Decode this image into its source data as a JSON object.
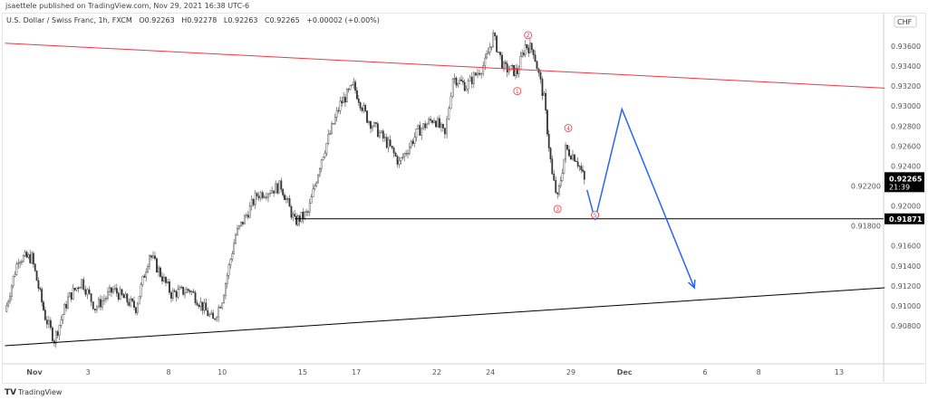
{
  "publisher": "jsaettele published on TradingView.com, Nov 29, 2021 16:38 UTC-6",
  "legend": {
    "symbol": "U.S. Dollar / Swiss Franc, 1h, FXCM",
    "open": "O0.92263",
    "high": "H0.92278",
    "low": "L0.92263",
    "close": "C0.92265",
    "change": "+0.00002 (+0.00%)"
  },
  "footer": {
    "logo": "TradingView"
  },
  "chart_data": {
    "type": "line",
    "title": "",
    "currency": "CHF",
    "ylim": [
      0.9072,
      0.9375
    ],
    "y_ticks": [
      "0.93600",
      "0.93400",
      "0.93200",
      "0.93000",
      "0.92800",
      "0.92600",
      "0.92400",
      "0.92200",
      "0.92000",
      "0.91800",
      "0.91600",
      "0.91400",
      "0.91200",
      "0.91000",
      "0.90800"
    ],
    "x_ticks": [
      {
        "label": "Nov",
        "day": 0,
        "bold": true
      },
      {
        "label": "3",
        "day": 2
      },
      {
        "label": "8",
        "day": 5
      },
      {
        "label": "10",
        "day": 7
      },
      {
        "label": "15",
        "day": 10
      },
      {
        "label": "17",
        "day": 12
      },
      {
        "label": "22",
        "day": 15
      },
      {
        "label": "24",
        "day": 17
      },
      {
        "label": "29",
        "day": 20
      },
      {
        "label": "Dec",
        "day": 22,
        "bold": true
      },
      {
        "label": "6",
        "day": 25
      },
      {
        "label": "8",
        "day": 27
      },
      {
        "label": "13",
        "day": 30
      }
    ],
    "price_path": [
      [
        -1.1,
        0.9094
      ],
      [
        -0.6,
        0.9148
      ],
      [
        -0.1,
        0.9148
      ],
      [
        0.4,
        0.9089
      ],
      [
        0.74,
        0.9066
      ],
      [
        1.25,
        0.9107
      ],
      [
        1.76,
        0.9125
      ],
      [
        2.26,
        0.9098
      ],
      [
        2.94,
        0.9116
      ],
      [
        3.78,
        0.9098
      ],
      [
        4.29,
        0.9152
      ],
      [
        5.1,
        0.9112
      ],
      [
        5.8,
        0.9116
      ],
      [
        6.66,
        0.9085
      ],
      [
        7.0,
        0.9107
      ],
      [
        7.5,
        0.9171
      ],
      [
        8.3,
        0.9211
      ],
      [
        9.2,
        0.922
      ],
      [
        9.7,
        0.9184
      ],
      [
        10.2,
        0.9193
      ],
      [
        10.7,
        0.9248
      ],
      [
        11.4,
        0.9302
      ],
      [
        11.9,
        0.932
      ],
      [
        12.4,
        0.9288
      ],
      [
        13.2,
        0.9261
      ],
      [
        13.6,
        0.9243
      ],
      [
        14.3,
        0.9275
      ],
      [
        14.9,
        0.9288
      ],
      [
        15.3,
        0.927
      ],
      [
        15.6,
        0.9329
      ],
      [
        16.1,
        0.932
      ],
      [
        16.8,
        0.9343
      ],
      [
        17.1,
        0.937
      ],
      [
        17.5,
        0.9338
      ],
      [
        18.0,
        0.9334
      ],
      [
        18.3,
        0.9361
      ],
      [
        18.6,
        0.9356
      ],
      [
        19.0,
        0.9307
      ],
      [
        19.3,
        0.923
      ],
      [
        19.5,
        0.9207
      ],
      [
        19.8,
        0.9257
      ],
      [
        20.2,
        0.9248
      ],
      [
        20.5,
        0.92265
      ]
    ],
    "last_price": {
      "value": "0.92265",
      "countdown": "21:39"
    },
    "level_line": {
      "value": "0.91871",
      "start_day": 9.7
    },
    "trendlines": [
      {
        "color": "#f23645",
        "points": [
          [
            -1.1,
            0.9363
          ],
          [
            31.7,
            0.9318
          ]
        ]
      },
      {
        "color": "#000000",
        "points": [
          [
            -1.1,
            0.906
          ],
          [
            31.7,
            0.9118
          ]
        ]
      }
    ],
    "projection": {
      "color": "#2962ff",
      "points": [
        [
          20.6,
          0.9216
        ],
        [
          20.9,
          0.9186
        ],
        [
          21.9,
          0.9297
        ],
        [
          24.6,
          0.9118
        ]
      ]
    },
    "wave_labels": [
      {
        "label": "1",
        "day": 18.0,
        "price": 0.9315
      },
      {
        "label": "2",
        "day": 18.4,
        "price": 0.9371
      },
      {
        "label": "3",
        "day": 19.5,
        "price": 0.9197
      },
      {
        "label": "4",
        "day": 19.9,
        "price": 0.9278
      },
      {
        "label": "5",
        "day": 20.9,
        "price": 0.9191
      }
    ],
    "label_color": "#f23645"
  }
}
